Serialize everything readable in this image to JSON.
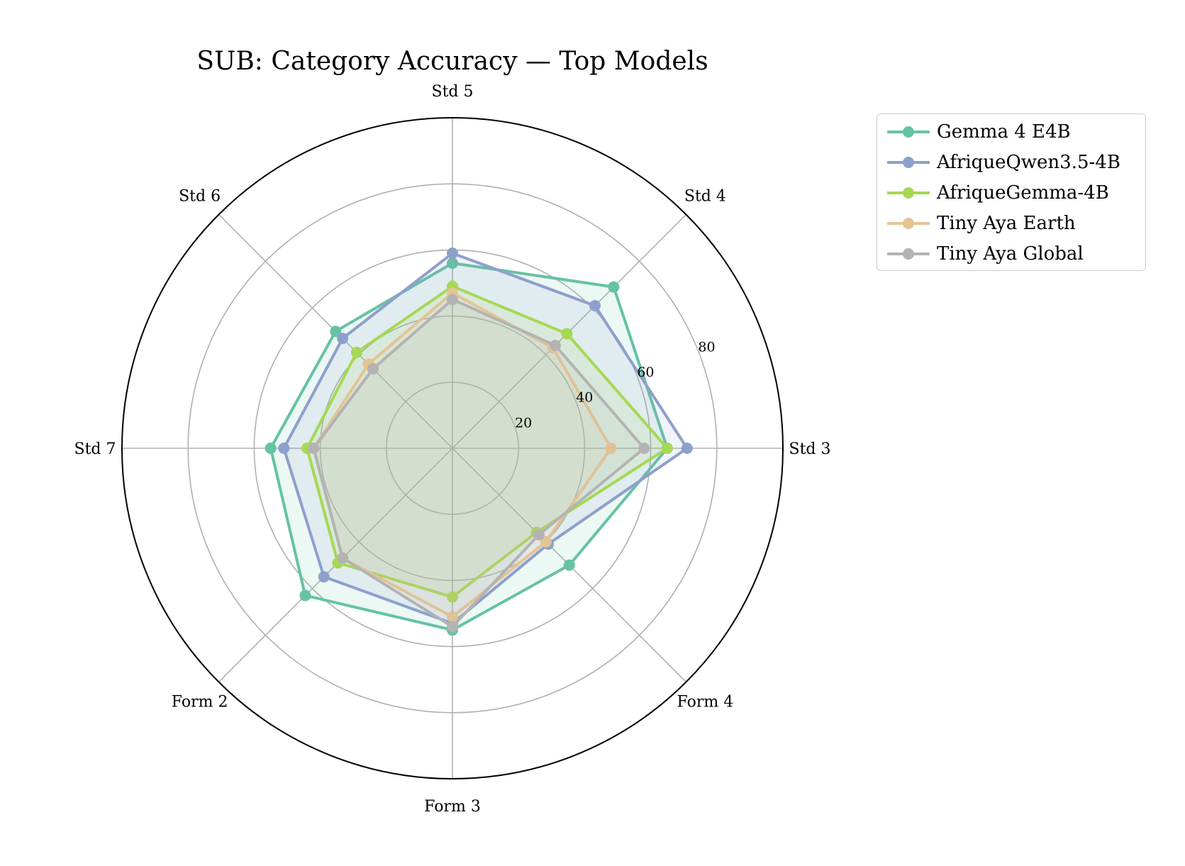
{
  "chart_data": {
    "type": "radar",
    "title": "SUB: Category Accuracy — Top Models",
    "categories": [
      "Std 3",
      "Std 4",
      "Std 5",
      "Std 6",
      "Std 7",
      "Form 2",
      "Form 3",
      "Form 4"
    ],
    "rlim": [
      0,
      100
    ],
    "radial_ticks": [
      20,
      40,
      60,
      80
    ],
    "grid": true,
    "legend_position": "upper-right",
    "series": [
      {
        "name": "Gemma 4 E4B",
        "color": "#66c2a5",
        "values": [
          65,
          69,
          56,
          50,
          55,
          63,
          55,
          50
        ]
      },
      {
        "name": "AfriqueQwen3.5-4B",
        "color": "#8da0cb",
        "values": [
          71,
          61,
          59,
          47,
          51,
          55,
          53,
          41
        ]
      },
      {
        "name": "AfriqueGemma-4B",
        "color": "#a6d854",
        "values": [
          65,
          49,
          49,
          41,
          44,
          49,
          45,
          36
        ]
      },
      {
        "name": "Tiny Aya Earth",
        "color": "#e5c494",
        "values": [
          48,
          43,
          47,
          36,
          42,
          47,
          51,
          40
        ]
      },
      {
        "name": "Tiny Aya Global",
        "color": "#b3b3b3",
        "values": [
          58,
          44,
          45,
          34,
          42,
          47,
          54,
          37
        ]
      }
    ]
  }
}
